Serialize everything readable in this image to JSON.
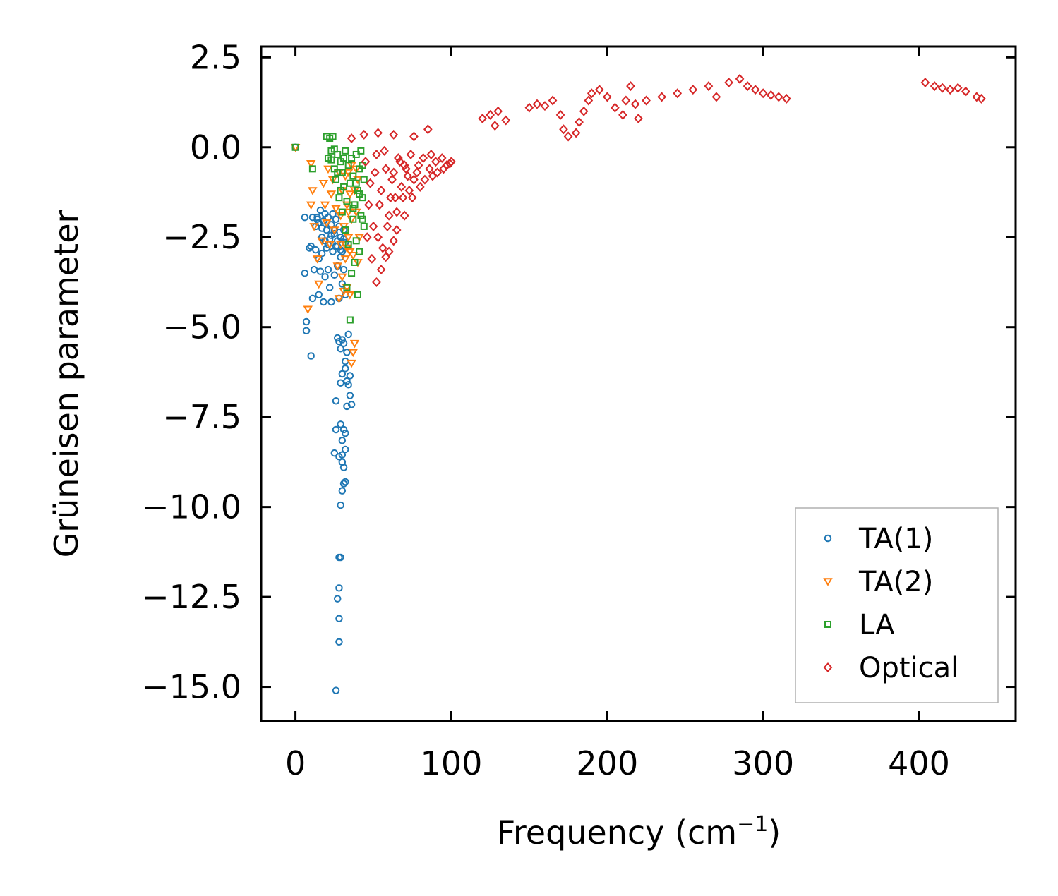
{
  "chart_data": {
    "type": "scatter",
    "title": "",
    "xlabel": {
      "prefix": "Frequency (cm",
      "sup": "−1",
      "suffix": ")"
    },
    "ylabel": "Grüneisen parameter",
    "xlim": [
      -22,
      462
    ],
    "ylim": [
      -15.95,
      2.8
    ],
    "xticks": [
      0,
      100,
      200,
      300,
      400
    ],
    "xtick_labels": [
      "0",
      "100",
      "200",
      "300",
      "400"
    ],
    "yticks": [
      2.5,
      0,
      -2.5,
      -5,
      -7.5,
      -10,
      -12.5,
      -15
    ],
    "ytick_labels": [
      "2.5",
      "0.0",
      "−2.5",
      "−5.0",
      "−7.5",
      "−10.0",
      "−12.5",
      "−15.0"
    ],
    "grid": false,
    "legend_position": "lower-right",
    "series": [
      {
        "name": "TA(1)",
        "marker": "circle",
        "color": "#1f77b4",
        "points": [
          [
            0,
            0
          ],
          [
            6,
            -1.95
          ],
          [
            6,
            -3.5
          ],
          [
            7,
            -4.85
          ],
          [
            7,
            -5.1
          ],
          [
            9,
            -2.8
          ],
          [
            10,
            -5.8
          ],
          [
            10,
            -2.75
          ],
          [
            11,
            -1.95
          ],
          [
            11,
            -4.2
          ],
          [
            12,
            -3.4
          ],
          [
            13,
            -2.2
          ],
          [
            13,
            -2.85
          ],
          [
            14,
            -2.0
          ],
          [
            15,
            -3.1
          ],
          [
            15,
            -4.1
          ],
          [
            16,
            -1.75
          ],
          [
            16,
            -3.45
          ],
          [
            17,
            -2.5
          ],
          [
            17,
            -2.95
          ],
          [
            18,
            -2.05
          ],
          [
            18,
            -4.3
          ],
          [
            19,
            -1.85
          ],
          [
            19,
            -3.6
          ],
          [
            20,
            -2.3
          ],
          [
            20,
            -2.8
          ],
          [
            21,
            -3.4
          ],
          [
            21,
            -1.95
          ],
          [
            22,
            -2.55
          ],
          [
            22,
            -3.9
          ],
          [
            23,
            -2.15
          ],
          [
            23,
            -4.3
          ],
          [
            24,
            -2.9
          ],
          [
            24,
            -1.85
          ],
          [
            25,
            -3.55
          ],
          [
            25,
            -2.4
          ],
          [
            26,
            -2.0
          ],
          [
            26,
            -2.75
          ],
          [
            27,
            -3.3
          ],
          [
            27,
            -2.6
          ],
          [
            28,
            -4.2
          ],
          [
            28,
            -2.2
          ],
          [
            29,
            -3.05
          ],
          [
            29,
            -2.5
          ],
          [
            30,
            -3.8
          ],
          [
            30,
            -2.9
          ],
          [
            31,
            -2.3
          ],
          [
            31,
            -3.4
          ],
          [
            32,
            -4.1
          ],
          [
            32,
            -2.65
          ],
          [
            27,
            -5.3
          ],
          [
            28,
            -5.4
          ],
          [
            29,
            -5.6
          ],
          [
            30,
            -5.35
          ],
          [
            31,
            -5.45
          ],
          [
            32,
            -6.15
          ],
          [
            33,
            -6.5
          ],
          [
            34,
            -6.6
          ],
          [
            35,
            -6.9
          ],
          [
            36,
            -7.15
          ],
          [
            34,
            -5.2
          ],
          [
            33,
            -5.7
          ],
          [
            30,
            -6.3
          ],
          [
            29,
            -6.55
          ],
          [
            35,
            -6.35
          ],
          [
            32,
            -5.95
          ],
          [
            33,
            -7.2
          ],
          [
            26,
            -7.05
          ],
          [
            29,
            -7.7
          ],
          [
            31,
            -7.85
          ],
          [
            32,
            -7.95
          ],
          [
            26,
            -7.85
          ],
          [
            30,
            -8.15
          ],
          [
            30,
            -8.55
          ],
          [
            32,
            -8.4
          ],
          [
            25,
            -8.5
          ],
          [
            28,
            -8.6
          ],
          [
            30,
            -8.75
          ],
          [
            31,
            -8.9
          ],
          [
            32,
            -9.3
          ],
          [
            31,
            -9.35
          ],
          [
            30,
            -9.55
          ],
          [
            29,
            -9.95
          ],
          [
            28,
            -11.4
          ],
          [
            29,
            -11.4
          ],
          [
            28,
            -12.25
          ],
          [
            27,
            -12.55
          ],
          [
            28,
            -13.1
          ],
          [
            28,
            -13.75
          ],
          [
            26,
            -15.1
          ],
          [
            14,
            -1.95
          ],
          [
            15,
            -2.1
          ],
          [
            17,
            -2.25
          ],
          [
            19,
            -2.6
          ],
          [
            21,
            -2.7
          ],
          [
            23,
            -2.45
          ],
          [
            25,
            -2.3
          ],
          [
            27,
            -2.75
          ],
          [
            29,
            -2.85
          ],
          [
            31,
            -2.55
          ]
        ]
      },
      {
        "name": "TA(2)",
        "marker": "triangle-down",
        "color": "#ff7f0e",
        "points": [
          [
            0,
            0
          ],
          [
            10,
            -0.45
          ],
          [
            11,
            -1.2
          ],
          [
            10,
            -1.6
          ],
          [
            8,
            -4.5
          ],
          [
            12,
            -2.2
          ],
          [
            14,
            -3.1
          ],
          [
            15,
            -3.8
          ],
          [
            17,
            -2.6
          ],
          [
            18,
            -1.0
          ],
          [
            19,
            -1.6
          ],
          [
            20,
            -2.1
          ],
          [
            21,
            -0.6
          ],
          [
            22,
            -2.7
          ],
          [
            23,
            -1.3
          ],
          [
            24,
            -0.9
          ],
          [
            25,
            -2.3
          ],
          [
            26,
            -1.7
          ],
          [
            27,
            -3.3
          ],
          [
            28,
            -0.7
          ],
          [
            28,
            -4.2
          ],
          [
            29,
            -1.9
          ],
          [
            29,
            -2.7
          ],
          [
            30,
            -1.2
          ],
          [
            30,
            -3.6
          ],
          [
            31,
            -4.0
          ],
          [
            31,
            -2.2
          ],
          [
            32,
            -0.8
          ],
          [
            32,
            -3.1
          ],
          [
            33,
            -1.6
          ],
          [
            33,
            -3.9
          ],
          [
            34,
            -2.5
          ],
          [
            34,
            -0.7
          ],
          [
            35,
            -1.3
          ],
          [
            35,
            -4.1
          ],
          [
            36,
            -2.0
          ],
          [
            36,
            -6.0
          ],
          [
            37,
            -5.7
          ],
          [
            38,
            -5.45
          ],
          [
            39,
            -0.6
          ],
          [
            39,
            -1.8
          ],
          [
            40,
            -3.2
          ],
          [
            40,
            -0.9
          ],
          [
            41,
            -2.5
          ],
          [
            38,
            -1.2
          ],
          [
            37,
            -3.0
          ],
          [
            36,
            -0.5
          ],
          [
            35,
            -2.9
          ],
          [
            34,
            -1.8
          ],
          [
            33,
            -2.8
          ]
        ]
      },
      {
        "name": "LA",
        "marker": "square",
        "color": "#2ca02c",
        "points": [
          [
            0,
            0
          ],
          [
            11,
            -0.6
          ],
          [
            20,
            0.3
          ],
          [
            22,
            0.25
          ],
          [
            23,
            -0.1
          ],
          [
            24,
            0.3
          ],
          [
            21,
            -0.3
          ],
          [
            25,
            -0.6
          ],
          [
            26,
            -0.9
          ],
          [
            27,
            -0.2
          ],
          [
            28,
            -1.4
          ],
          [
            29,
            -0.4
          ],
          [
            30,
            -1.8
          ],
          [
            30,
            -0.7
          ],
          [
            31,
            -1.1
          ],
          [
            32,
            -2.3
          ],
          [
            32,
            -0.1
          ],
          [
            33,
            -1.5
          ],
          [
            34,
            -0.5
          ],
          [
            34,
            -2.7
          ],
          [
            35,
            -4.8
          ],
          [
            35,
            -1.0
          ],
          [
            36,
            -3.5
          ],
          [
            36,
            -0.3
          ],
          [
            37,
            -2.0
          ],
          [
            37,
            -0.8
          ],
          [
            38,
            -1.6
          ],
          [
            38,
            -3.2
          ],
          [
            39,
            -0.2
          ],
          [
            39,
            -2.6
          ],
          [
            40,
            -1.2
          ],
          [
            40,
            -4.1
          ],
          [
            41,
            -0.6
          ],
          [
            41,
            -2.9
          ],
          [
            42,
            -1.9
          ],
          [
            42,
            -0.1
          ],
          [
            43,
            -1.4
          ],
          [
            43,
            -0.5
          ],
          [
            44,
            -0.9
          ],
          [
            44,
            -2.2
          ],
          [
            33,
            -3.9
          ],
          [
            31,
            -0.3
          ],
          [
            29,
            -1.2
          ],
          [
            27,
            -0.7
          ],
          [
            25,
            -0.05
          ],
          [
            23,
            -0.35
          ],
          [
            37,
            -1.7
          ],
          [
            39,
            -1.0
          ],
          [
            41,
            -1.3
          ],
          [
            43,
            -2.0
          ]
        ]
      },
      {
        "name": "Optical",
        "marker": "diamond",
        "color": "#d62728",
        "points": [
          [
            36,
            0.25
          ],
          [
            44,
            0.35
          ],
          [
            53,
            0.4
          ],
          [
            63,
            0.35
          ],
          [
            76,
            0.3
          ],
          [
            85,
            0.5
          ],
          [
            52,
            -3.75
          ],
          [
            55,
            -3.4
          ],
          [
            58,
            -3.05
          ],
          [
            60,
            -2.9
          ],
          [
            63,
            -2.6
          ],
          [
            65,
            -2.3
          ],
          [
            70,
            -1.9
          ],
          [
            75,
            -1.4
          ],
          [
            80,
            -1.1
          ],
          [
            88,
            -0.8
          ],
          [
            95,
            -0.6
          ],
          [
            99,
            -0.45
          ],
          [
            46,
            -2.5
          ],
          [
            48,
            -1.0
          ],
          [
            50,
            -2.2
          ],
          [
            52,
            -0.2
          ],
          [
            54,
            -1.6
          ],
          [
            56,
            -2.8
          ],
          [
            58,
            -0.6
          ],
          [
            60,
            -1.9
          ],
          [
            62,
            -0.9
          ],
          [
            64,
            -1.4
          ],
          [
            66,
            -0.3
          ],
          [
            68,
            -1.1
          ],
          [
            70,
            -0.5
          ],
          [
            72,
            -0.8
          ],
          [
            74,
            -0.2
          ],
          [
            78,
            -0.7
          ],
          [
            82,
            -0.3
          ],
          [
            86,
            -0.6
          ],
          [
            90,
            -0.4
          ],
          [
            94,
            -0.3
          ],
          [
            45,
            -0.4
          ],
          [
            47,
            -1.6
          ],
          [
            49,
            -3.1
          ],
          [
            51,
            -0.7
          ],
          [
            53,
            -2.5
          ],
          [
            55,
            -1.2
          ],
          [
            57,
            -0.1
          ],
          [
            59,
            -2.2
          ],
          [
            61,
            -1.4
          ],
          [
            63,
            -0.7
          ],
          [
            65,
            -1.8
          ],
          [
            67,
            -0.4
          ],
          [
            69,
            -1.4
          ],
          [
            71,
            -0.6
          ],
          [
            73,
            -1.2
          ],
          [
            76,
            -0.9
          ],
          [
            79,
            -0.5
          ],
          [
            83,
            -0.9
          ],
          [
            87,
            -0.2
          ],
          [
            91,
            -0.7
          ],
          [
            97,
            -0.5
          ],
          [
            100,
            -0.4
          ],
          [
            120,
            0.8
          ],
          [
            125,
            0.9
          ],
          [
            130,
            1.0
          ],
          [
            135,
            0.75
          ],
          [
            128,
            0.6
          ],
          [
            150,
            1.1
          ],
          [
            155,
            1.2
          ],
          [
            160,
            1.15
          ],
          [
            165,
            1.3
          ],
          [
            170,
            0.9
          ],
          [
            172,
            0.5
          ],
          [
            175,
            0.3
          ],
          [
            180,
            0.4
          ],
          [
            182,
            0.7
          ],
          [
            185,
            1.0
          ],
          [
            188,
            1.3
          ],
          [
            190,
            1.5
          ],
          [
            195,
            1.6
          ],
          [
            200,
            1.4
          ],
          [
            205,
            1.1
          ],
          [
            210,
            0.9
          ],
          [
            212,
            1.3
          ],
          [
            215,
            1.7
          ],
          [
            218,
            1.2
          ],
          [
            220,
            0.8
          ],
          [
            225,
            1.3
          ],
          [
            235,
            1.4
          ],
          [
            245,
            1.5
          ],
          [
            255,
            1.6
          ],
          [
            265,
            1.7
          ],
          [
            270,
            1.4
          ],
          [
            278,
            1.8
          ],
          [
            285,
            1.9
          ],
          [
            290,
            1.7
          ],
          [
            295,
            1.6
          ],
          [
            300,
            1.5
          ],
          [
            305,
            1.45
          ],
          [
            310,
            1.4
          ],
          [
            315,
            1.35
          ],
          [
            404,
            1.8
          ],
          [
            410,
            1.7
          ],
          [
            415,
            1.65
          ],
          [
            420,
            1.6
          ],
          [
            425,
            1.65
          ],
          [
            430,
            1.55
          ],
          [
            437,
            1.4
          ],
          [
            440,
            1.35
          ]
        ]
      }
    ]
  }
}
